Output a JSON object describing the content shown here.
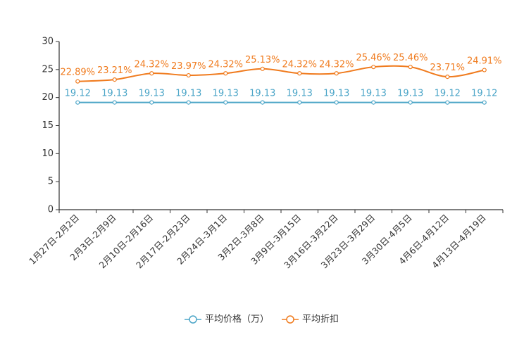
{
  "chart_data": {
    "type": "line",
    "categories": [
      "1月27日-2月2日",
      "2月3日-2月9日",
      "2月10日-2月16日",
      "2月17日-2月23日",
      "2月24日-3月1日",
      "3月2日-3月8日",
      "3月9日-3月15日",
      "3月16日-3月22日",
      "3月23日-3月29日",
      "3月30日-4月5日",
      "4月6日-4月12日",
      "4月13日-4月19日"
    ],
    "ylim": [
      0,
      30
    ],
    "yticks": [
      0,
      5,
      10,
      15,
      20,
      25,
      30
    ],
    "grid": false,
    "legend_position": "bottom-center",
    "series": [
      {
        "name": "平均价格（万）",
        "color": "#4da6c8",
        "values": [
          19.12,
          19.13,
          19.13,
          19.13,
          19.13,
          19.13,
          19.13,
          19.13,
          19.13,
          19.13,
          19.12,
          19.12
        ],
        "labels": [
          "19.12",
          "19.13",
          "19.13",
          "19.13",
          "19.13",
          "19.13",
          "19.13",
          "19.13",
          "19.13",
          "19.13",
          "19.12",
          "19.12"
        ]
      },
      {
        "name": "平均折扣",
        "color": "#f07b1e",
        "values": [
          22.89,
          23.21,
          24.32,
          23.97,
          24.32,
          25.13,
          24.32,
          24.32,
          25.46,
          25.46,
          23.71,
          24.91
        ],
        "labels": [
          "22.89%",
          "23.21%",
          "24.32%",
          "23.97%",
          "24.32%",
          "25.13%",
          "24.32%",
          "24.32%",
          "25.46%",
          "25.46%",
          "23.71%",
          "24.91%"
        ]
      }
    ]
  }
}
